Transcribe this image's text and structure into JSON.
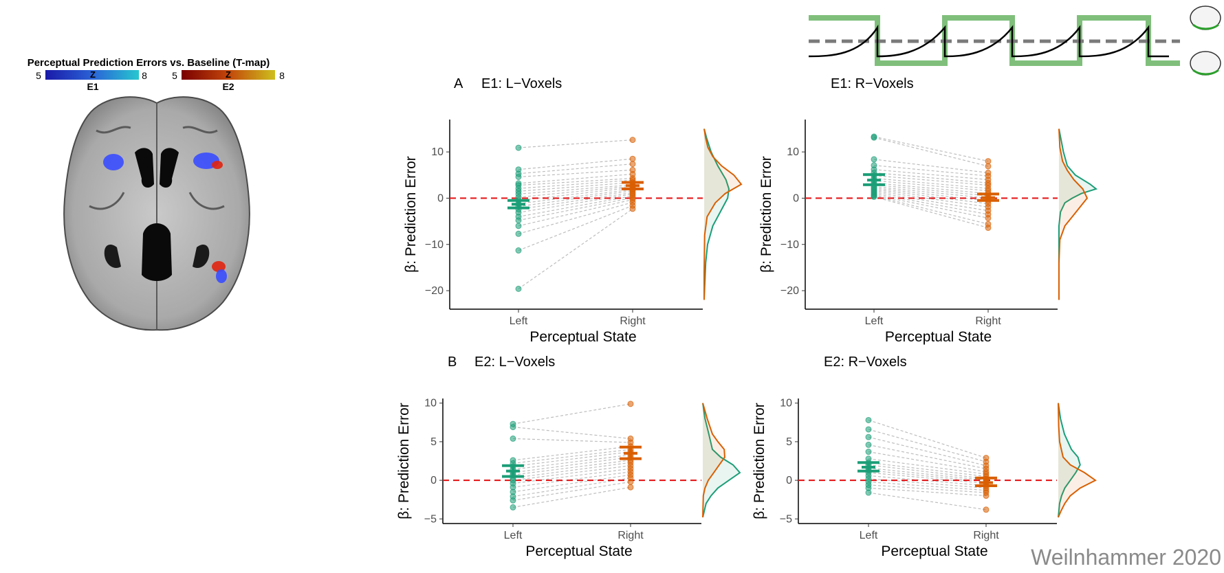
{
  "brain_panel": {
    "title": "Perceptual Prediction Errors vs. Baseline (T-map)",
    "scale_e1": {
      "min": "5",
      "mid": "Z",
      "max": "8",
      "label": "E1"
    },
    "scale_e2": {
      "min": "5",
      "mid": "Z",
      "max": "8",
      "label": "E2"
    }
  },
  "credit": "Weilnhammer 2020",
  "colors": {
    "left": "#1b9e77",
    "right": "#d95f02",
    "zero_line": "#e41a1c",
    "stim_wave": "#7fbf7b",
    "axis": "#000000",
    "paired_line": "#bdbdbd",
    "brain_blue": "#3a4dff",
    "brain_red": "#e0240e"
  },
  "chart_data": [
    {
      "type": "scatter",
      "panel_letter": "A",
      "title": "E1: L−Voxels",
      "xlabel": "Perceptual State",
      "ylabel": "β: Prediction Error",
      "categories": [
        "Left",
        "Right"
      ],
      "ylim": [
        -24,
        17
      ],
      "yticks": [
        -20,
        -10,
        0,
        10
      ],
      "ytick_labels": [
        "−20",
        "−10",
        "0",
        "10"
      ],
      "reference_line": 0,
      "summary": {
        "Left": {
          "mean": -1.3,
          "ci_low": -2.1,
          "ci_high": -0.5
        },
        "Right": {
          "mean": 2.7,
          "ci_low": 2.0,
          "ci_high": 3.4
        }
      },
      "pairs": [
        [
          10.9,
          12.6
        ],
        [
          6.2,
          8.5
        ],
        [
          5.3,
          7.4
        ],
        [
          4.6,
          6.1
        ],
        [
          3.2,
          5.2
        ],
        [
          2.8,
          4.3
        ],
        [
          2.1,
          3.9
        ],
        [
          1.5,
          3.4
        ],
        [
          0.9,
          2.9
        ],
        [
          0.2,
          2.6
        ],
        [
          -0.5,
          2.3
        ],
        [
          -1.2,
          1.9
        ],
        [
          -1.8,
          1.6
        ],
        [
          -2.4,
          1.2
        ],
        [
          -3.1,
          0.9
        ],
        [
          -4.0,
          0.5
        ],
        [
          -4.8,
          0.1
        ],
        [
          -6.0,
          -0.3
        ],
        [
          -7.7,
          -0.9
        ],
        [
          -11.3,
          -1.6
        ],
        [
          -19.6,
          -2.3
        ]
      ],
      "density": {
        "Left": [
          [
            -22,
            0.0
          ],
          [
            -18,
            0.03
          ],
          [
            -14,
            0.06
          ],
          [
            -10,
            0.14
          ],
          [
            -6,
            0.35
          ],
          [
            -3,
            0.65
          ],
          [
            0,
            0.95
          ],
          [
            2,
            1.0
          ],
          [
            4,
            0.88
          ],
          [
            7,
            0.55
          ],
          [
            10,
            0.28
          ],
          [
            13,
            0.1
          ],
          [
            15,
            0.0
          ]
        ],
        "Right": [
          [
            -22,
            0.0
          ],
          [
            -16,
            0.0
          ],
          [
            -8,
            0.02
          ],
          [
            -4,
            0.12
          ],
          [
            -1,
            0.45
          ],
          [
            1,
            0.85
          ],
          [
            3,
            1.5
          ],
          [
            5,
            1.2
          ],
          [
            7,
            0.7
          ],
          [
            9,
            0.35
          ],
          [
            11,
            0.15
          ],
          [
            13,
            0.06
          ],
          [
            15,
            0.0
          ]
        ]
      }
    },
    {
      "type": "scatter",
      "panel_letter": "",
      "title": "E1: R−Voxels",
      "xlabel": "Perceptual State",
      "ylabel": "β: Prediction Error",
      "categories": [
        "Left",
        "Right"
      ],
      "ylim": [
        -24,
        17
      ],
      "yticks": [
        -20,
        -10,
        0,
        10
      ],
      "ytick_labels": [
        "−20",
        "−10",
        "0",
        "10"
      ],
      "reference_line": 0,
      "summary": {
        "Left": {
          "mean": 3.9,
          "ci_low": 2.9,
          "ci_high": 5.1
        },
        "Right": {
          "mean": 0.1,
          "ci_low": -0.5,
          "ci_high": 0.9
        }
      },
      "pairs": [
        [
          13.3,
          8.0
        ],
        [
          13.1,
          6.9
        ],
        [
          8.4,
          5.5
        ],
        [
          7.1,
          4.8
        ],
        [
          6.2,
          4.0
        ],
        [
          5.5,
          3.3
        ],
        [
          4.9,
          2.8
        ],
        [
          4.3,
          2.1
        ],
        [
          3.8,
          1.6
        ],
        [
          3.3,
          1.0
        ],
        [
          2.9,
          0.5
        ],
        [
          2.5,
          0.0
        ],
        [
          2.2,
          -0.6
        ],
        [
          1.9,
          -1.2
        ],
        [
          1.6,
          -1.9
        ],
        [
          1.3,
          -2.7
        ],
        [
          1.0,
          -3.5
        ],
        [
          0.7,
          -4.3
        ],
        [
          0.5,
          -5.6
        ],
        [
          0.3,
          -6.4
        ]
      ],
      "density": {
        "Left": [
          [
            -22,
            0.0
          ],
          [
            -6,
            0.0
          ],
          [
            -3,
            0.05
          ],
          [
            -1,
            0.2
          ],
          [
            0,
            0.45
          ],
          [
            1,
            0.75
          ],
          [
            2,
            1.25
          ],
          [
            3,
            1.05
          ],
          [
            5,
            0.55
          ],
          [
            7,
            0.28
          ],
          [
            10,
            0.15
          ],
          [
            13,
            0.06
          ],
          [
            15,
            0.0
          ]
        ],
        "Right": [
          [
            -22,
            0.0
          ],
          [
            -14,
            0.0
          ],
          [
            -9,
            0.03
          ],
          [
            -6,
            0.2
          ],
          [
            -4,
            0.45
          ],
          [
            -2,
            0.7
          ],
          [
            0,
            0.95
          ],
          [
            2,
            0.8
          ],
          [
            4,
            0.5
          ],
          [
            6,
            0.28
          ],
          [
            8,
            0.12
          ],
          [
            11,
            0.03
          ],
          [
            15,
            0.0
          ]
        ]
      }
    },
    {
      "type": "scatter",
      "panel_letter": "B",
      "title": "E2: L−Voxels",
      "xlabel": "Perceptual State",
      "ylabel": "β: Prediction Error",
      "categories": [
        "Left",
        "Right"
      ],
      "ylim": [
        -5.6,
        10.6
      ],
      "yticks": [
        -5,
        0,
        5,
        10
      ],
      "ytick_labels": [
        "−5",
        "0",
        "5",
        "10"
      ],
      "reference_line": 0,
      "summary": {
        "Left": {
          "mean": 1.2,
          "ci_low": 0.5,
          "ci_high": 1.9
        },
        "Right": {
          "mean": 3.5,
          "ci_low": 2.8,
          "ci_high": 4.3
        }
      },
      "pairs": [
        [
          7.3,
          9.9
        ],
        [
          6.9,
          5.4
        ],
        [
          5.4,
          4.9
        ],
        [
          2.6,
          4.4
        ],
        [
          2.2,
          4.0
        ],
        [
          1.8,
          3.7
        ],
        [
          1.4,
          3.3
        ],
        [
          1.0,
          3.0
        ],
        [
          0.7,
          2.6
        ],
        [
          0.3,
          2.3
        ],
        [
          0.0,
          1.9
        ],
        [
          -0.4,
          1.5
        ],
        [
          -0.9,
          1.1
        ],
        [
          -1.5,
          0.7
        ],
        [
          -2.1,
          0.3
        ],
        [
          -2.6,
          -0.2
        ],
        [
          -3.5,
          -0.9
        ]
      ],
      "density": {
        "Left": [
          [
            -4.8,
            0.0
          ],
          [
            -3,
            0.12
          ],
          [
            -2,
            0.3
          ],
          [
            -1,
            0.55
          ],
          [
            0,
            0.95
          ],
          [
            1,
            1.35
          ],
          [
            2,
            1.1
          ],
          [
            3,
            0.65
          ],
          [
            4,
            0.35
          ],
          [
            6,
            0.22
          ],
          [
            8,
            0.08
          ],
          [
            10,
            0.0
          ]
        ],
        "Right": [
          [
            -4.8,
            0.0
          ],
          [
            -2,
            0.02
          ],
          [
            -1,
            0.08
          ],
          [
            0,
            0.2
          ],
          [
            1,
            0.4
          ],
          [
            2,
            0.6
          ],
          [
            3,
            0.8
          ],
          [
            4,
            0.78
          ],
          [
            5,
            0.55
          ],
          [
            6,
            0.35
          ],
          [
            8,
            0.16
          ],
          [
            10,
            0.0
          ]
        ]
      }
    },
    {
      "type": "scatter",
      "panel_letter": "",
      "title": "E2: R−Voxels",
      "xlabel": "Perceptual State",
      "ylabel": "β: Prediction Error",
      "categories": [
        "Left",
        "Right"
      ],
      "ylim": [
        -5.6,
        10.6
      ],
      "yticks": [
        -5,
        0,
        5,
        10
      ],
      "ytick_labels": [
        "−5",
        "0",
        "5",
        "10"
      ],
      "reference_line": 0,
      "summary": {
        "Left": {
          "mean": 1.7,
          "ci_low": 1.2,
          "ci_high": 2.3
        },
        "Right": {
          "mean": -0.3,
          "ci_low": -0.7,
          "ci_high": 0.3
        }
      },
      "pairs": [
        [
          7.8,
          2.9
        ],
        [
          6.6,
          2.4
        ],
        [
          5.6,
          1.9
        ],
        [
          4.6,
          1.5
        ],
        [
          3.7,
          1.1
        ],
        [
          2.8,
          0.8
        ],
        [
          2.3,
          0.5
        ],
        [
          2.0,
          0.2
        ],
        [
          1.6,
          0.0
        ],
        [
          1.3,
          -0.2
        ],
        [
          1.0,
          -0.4
        ],
        [
          0.6,
          -0.7
        ],
        [
          0.2,
          -1.0
        ],
        [
          -0.2,
          -1.3
        ],
        [
          -0.6,
          -1.6
        ],
        [
          -1.0,
          -2.0
        ],
        [
          -1.6,
          -3.8
        ]
      ],
      "density": {
        "Left": [
          [
            -4.8,
            0.0
          ],
          [
            -3,
            0.06
          ],
          [
            -2,
            0.15
          ],
          [
            -1,
            0.3
          ],
          [
            0,
            0.55
          ],
          [
            1,
            0.8
          ],
          [
            2,
            1.0
          ],
          [
            3,
            0.9
          ],
          [
            4,
            0.6
          ],
          [
            6,
            0.28
          ],
          [
            8,
            0.1
          ],
          [
            10,
            0.0
          ]
        ],
        "Right": [
          [
            -4.8,
            0.0
          ],
          [
            -4,
            0.12
          ],
          [
            -3,
            0.3
          ],
          [
            -2,
            0.55
          ],
          [
            -1,
            1.0
          ],
          [
            0,
            1.7
          ],
          [
            1,
            1.2
          ],
          [
            2,
            0.55
          ],
          [
            3,
            0.22
          ],
          [
            5,
            0.06
          ],
          [
            7,
            0.02
          ],
          [
            10,
            0.0
          ]
        ]
      }
    }
  ]
}
